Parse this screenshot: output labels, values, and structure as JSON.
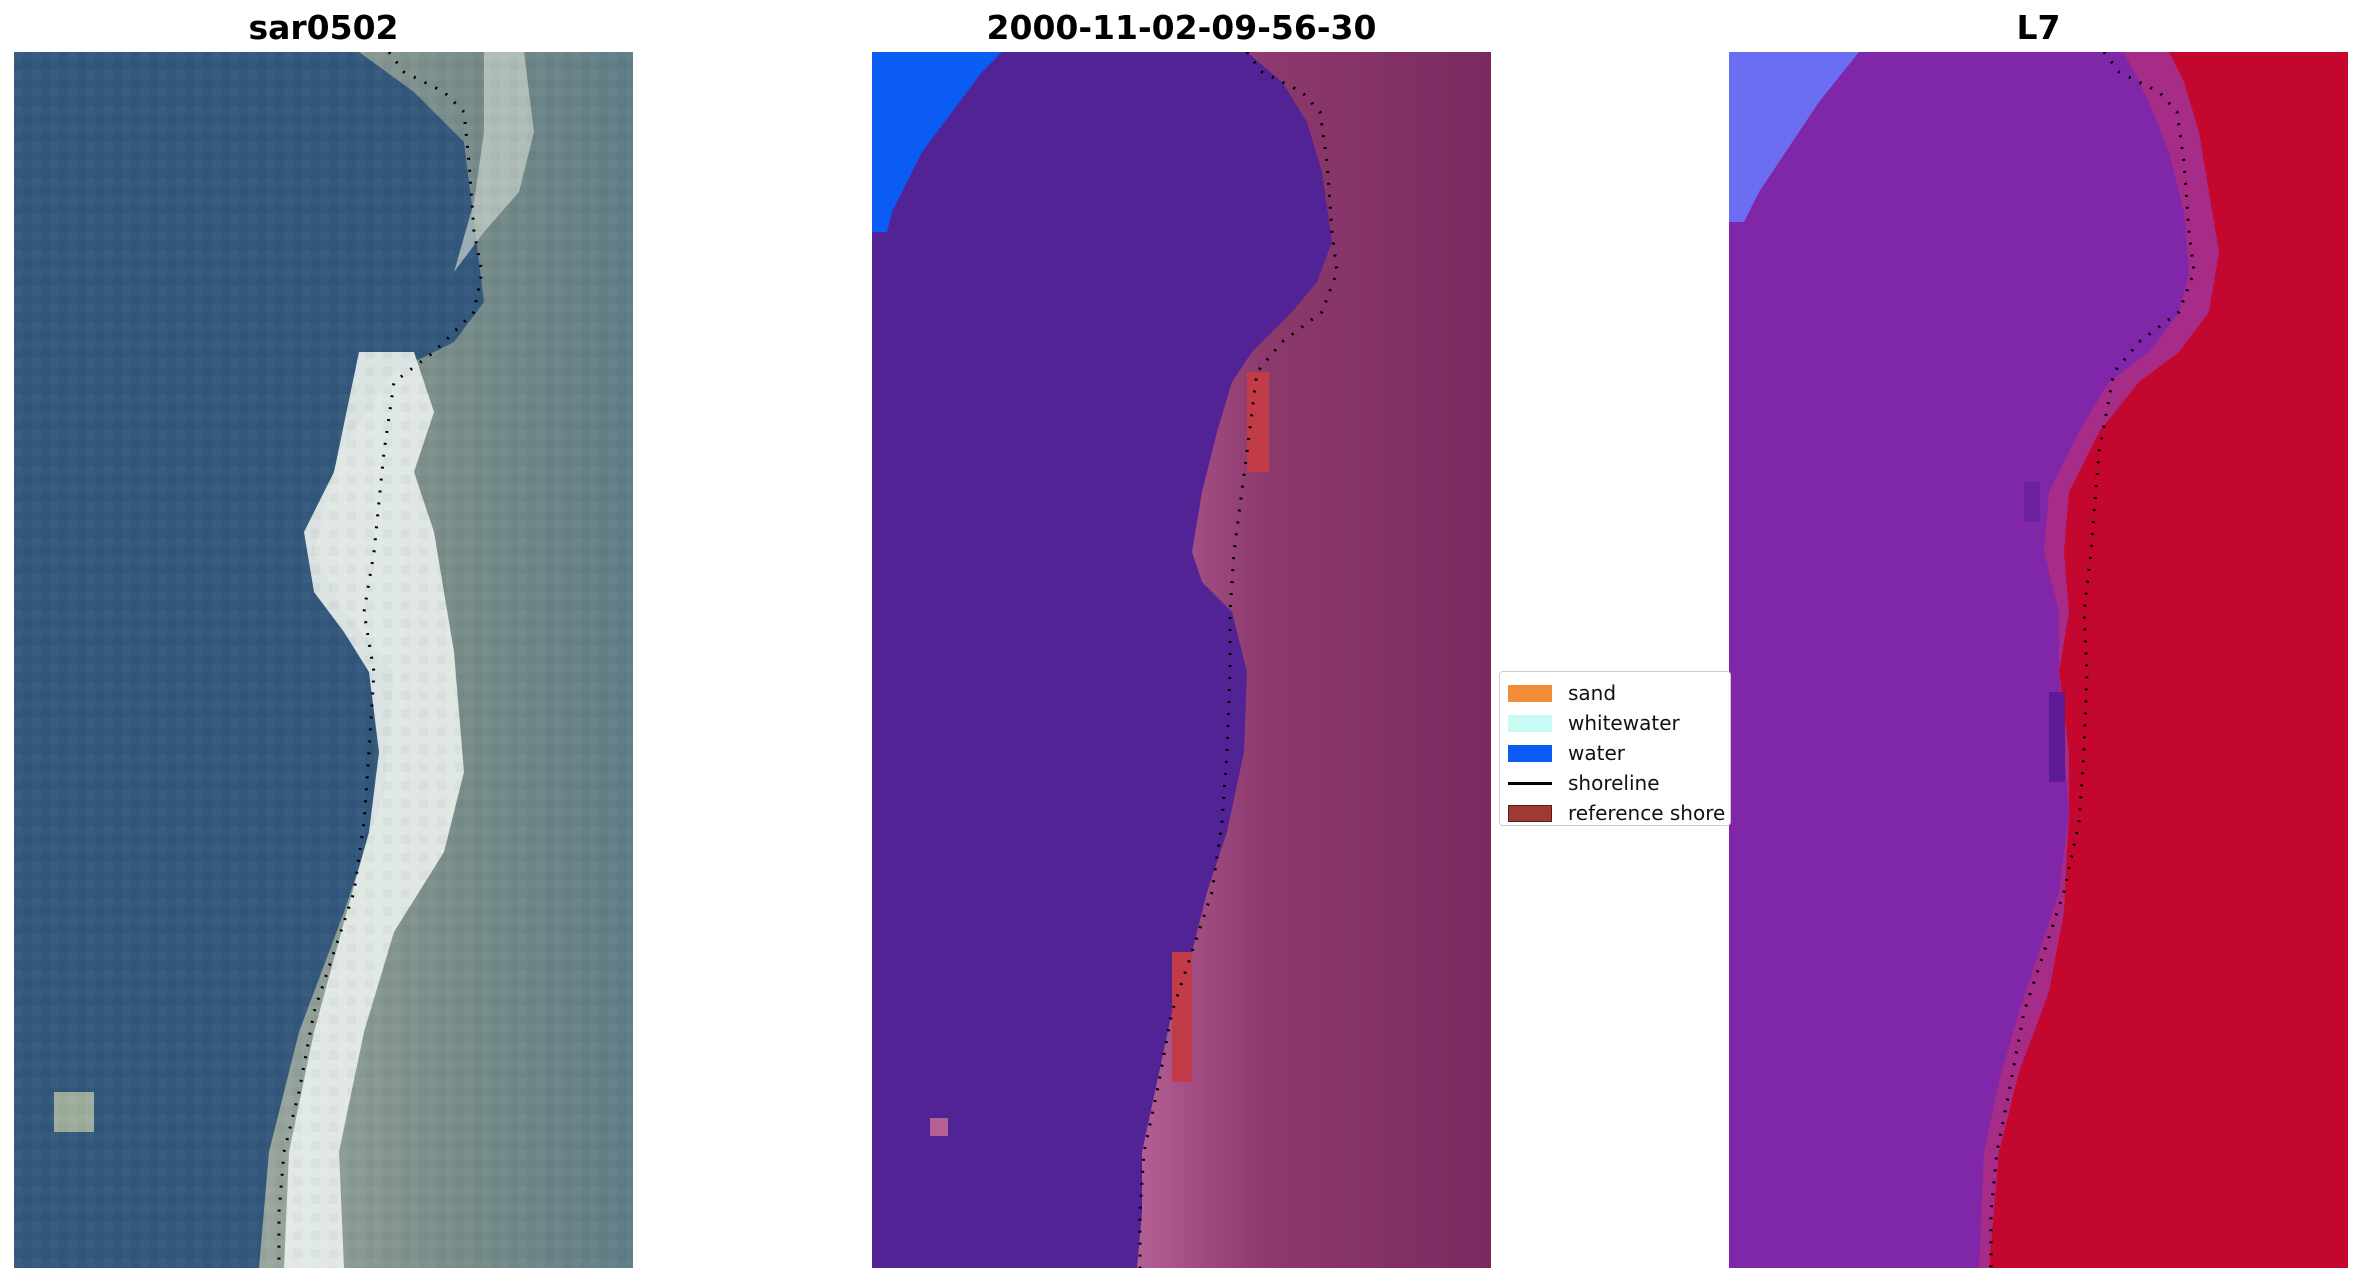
{
  "panels": {
    "rgb": {
      "title": "sar0502"
    },
    "classification": {
      "title": "2000-11-02-09-56-30"
    },
    "index": {
      "title": "L7"
    }
  },
  "legend": {
    "items": [
      {
        "label": "sand",
        "kind": "patch",
        "color": "#f28c38"
      },
      {
        "label": "whitewater",
        "kind": "patch",
        "color": "#c9fbf5"
      },
      {
        "label": "water",
        "kind": "patch",
        "color": "#0a5cf5"
      },
      {
        "label": "shoreline",
        "kind": "line",
        "color": "#000000"
      },
      {
        "label": "reference shore",
        "kind": "patch",
        "color": "#9e3a32"
      }
    ]
  },
  "colors": {
    "rgb_water": "#33587c",
    "rgb_surf": "#e8efea",
    "rgb_land": "#6d8587",
    "class_water": "#512394",
    "class_land": "#7d2a62",
    "class_edge": "#b45f96",
    "class_blue": "#0a5cf5",
    "class_reference": "#c23b48",
    "index_water": "#7f27a8",
    "index_land": "#c4072e",
    "index_edge": "#a62c88",
    "index_blue": "#6b6ef2"
  }
}
